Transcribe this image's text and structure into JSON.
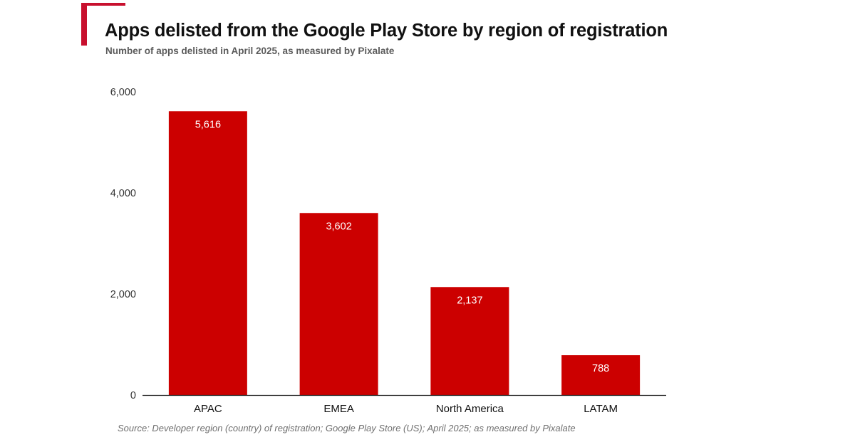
{
  "header": {
    "title": "Apps delisted from the Google Play Store by region of registration",
    "subtitle": "Number of apps delisted in April 2025, as measured by Pixalate"
  },
  "footer": {
    "source": "Source: Developer region (country) of registration; Google Play Store (US); April 2025; as measured by Pixalate"
  },
  "colors": {
    "bar": "#cc0000",
    "accent": "#c8102e",
    "axis": "#222222",
    "tick_text": "#333333",
    "data_label": "#ffffff"
  },
  "chart_data": {
    "type": "bar",
    "title": "Apps delisted from the Google Play Store by region of registration",
    "subtitle": "Number of apps delisted in April 2025, as measured by Pixalate",
    "categories": [
      "APAC",
      "EMEA",
      "North America",
      "LATAM"
    ],
    "values": [
      5616,
      3602,
      2137,
      788
    ],
    "data_labels": [
      "5,616",
      "3,602",
      "2,137",
      "788"
    ],
    "xlabel": "",
    "ylabel": "",
    "ylim": [
      0,
      6000
    ],
    "yticks": [
      0,
      2000,
      4000,
      6000
    ],
    "ytick_labels": [
      "0",
      "2,000",
      "4,000",
      "6,000"
    ],
    "grid": false,
    "legend": "none"
  }
}
